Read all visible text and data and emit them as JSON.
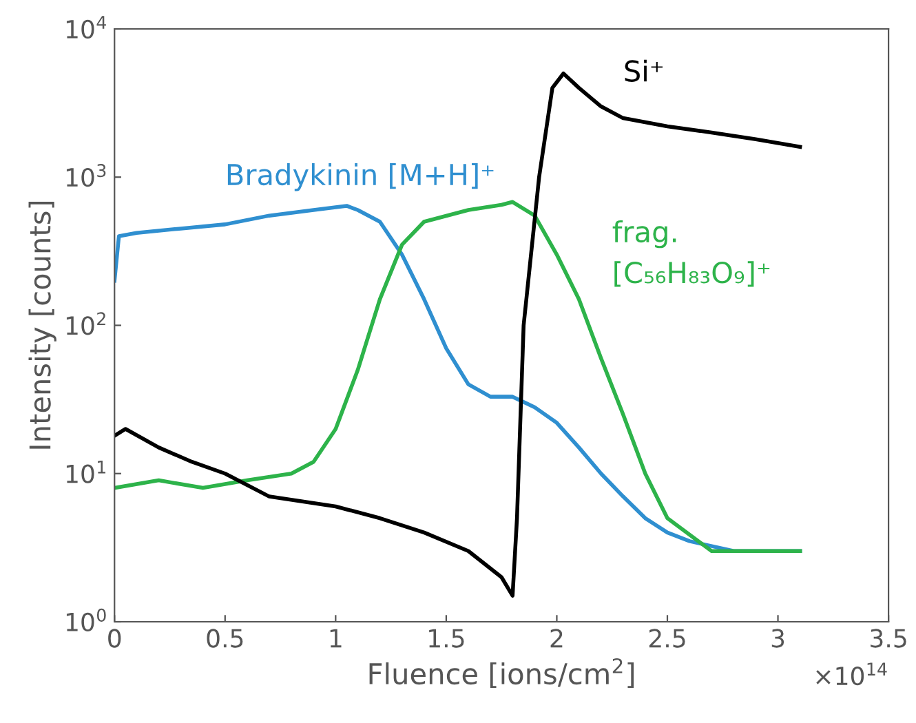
{
  "chart_data": {
    "type": "line",
    "xlabel": "Fluence [ions/cm$^{2}$]",
    "ylabel": "Intensity [counts]",
    "log": "y",
    "xlim": [
      0,
      3.5
    ],
    "ylim": [
      1,
      10000
    ],
    "xticks": [
      0,
      0.5,
      1,
      1.5,
      2,
      2.5,
      3,
      3.5
    ],
    "yticks": [
      {
        "value": 1,
        "label": "10$^{0}$"
      },
      {
        "value": 10,
        "label": "10$^{1}$"
      },
      {
        "value": 100,
        "label": "10$^{2}$"
      },
      {
        "value": 1000,
        "label": "10$^{3}$"
      },
      {
        "value": 10000,
        "label": "10$^{4}$"
      }
    ],
    "annotations": [
      "×10$^{14}$"
    ],
    "grid": false,
    "legend": false,
    "line_style": "solid",
    "marker": "none",
    "series": [
      {
        "name": "Bradykinin [M+H]⁺",
        "color": "#2f8fd0",
        "x": [
          0,
          0.02,
          0.1,
          0.3,
          0.5,
          0.7,
          0.9,
          1.05,
          1.1,
          1.2,
          1.3,
          1.4,
          1.5,
          1.6,
          1.7,
          1.8,
          1.9,
          2.0,
          2.1,
          2.2,
          2.3,
          2.4,
          2.5,
          2.6,
          2.8,
          3.1
        ],
        "values": [
          200,
          400,
          420,
          450,
          480,
          550,
          600,
          640,
          600,
          500,
          300,
          150,
          70,
          40,
          33,
          33,
          28,
          22,
          15,
          10,
          7,
          5,
          4,
          3.5,
          3,
          3
        ]
      },
      {
        "name": "frag.\n[C₅₆H₈₃O₉]⁺",
        "color": "#2db34a",
        "x": [
          0,
          0.2,
          0.4,
          0.6,
          0.8,
          0.9,
          1.0,
          1.1,
          1.2,
          1.3,
          1.4,
          1.6,
          1.75,
          1.8,
          1.9,
          2.0,
          2.1,
          2.2,
          2.3,
          2.4,
          2.5,
          2.7,
          3.1
        ],
        "values": [
          8,
          9,
          8,
          9,
          10,
          12,
          20,
          50,
          150,
          350,
          500,
          600,
          650,
          680,
          550,
          300,
          150,
          60,
          25,
          10,
          5,
          3,
          3
        ]
      },
      {
        "name": "Si⁺",
        "color": "#000000",
        "x": [
          0,
          0.05,
          0.2,
          0.35,
          0.5,
          0.7,
          1.0,
          1.2,
          1.4,
          1.6,
          1.75,
          1.8,
          1.82,
          1.85,
          1.92,
          1.98,
          2.03,
          2.1,
          2.2,
          2.3,
          2.5,
          2.7,
          2.9,
          3.1
        ],
        "values": [
          18,
          20,
          15,
          12,
          10,
          7,
          6,
          5,
          4,
          3,
          2,
          1.5,
          5,
          100,
          1000,
          4000,
          5000,
          4000,
          3000,
          2500,
          2200,
          2000,
          1800,
          1600
        ]
      }
    ]
  }
}
